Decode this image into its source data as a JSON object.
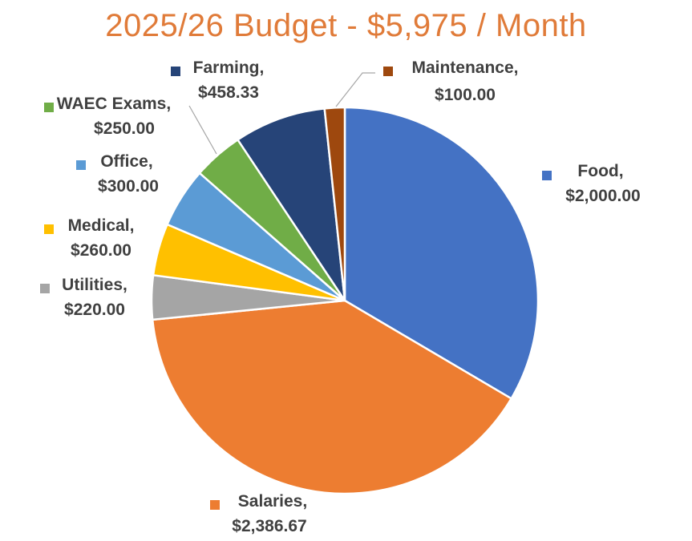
{
  "chart_data": {
    "type": "pie",
    "title": "2025/26 Budget - $5,975 / Month",
    "slices": [
      {
        "name": "Food",
        "value": 2000.0,
        "label_value": "$2,000.00",
        "color": "#4472C4"
      },
      {
        "name": "Salaries",
        "value": 2386.67,
        "label_value": "$2,386.67",
        "color": "#ED7D31"
      },
      {
        "name": "Utilities",
        "value": 220.0,
        "label_value": "$220.00",
        "color": "#A5A5A5"
      },
      {
        "name": "Medical",
        "value": 260.0,
        "label_value": "$260.00",
        "color": "#FFC000"
      },
      {
        "name": "Office",
        "value": 300.0,
        "label_value": "$300.00",
        "color": "#5B9BD5"
      },
      {
        "name": "WAEC Exams",
        "value": 250.0,
        "label_value": "$250.00",
        "color": "#70AD47"
      },
      {
        "name": "Farming",
        "value": 458.33,
        "label_value": "$458.33",
        "color": "#264478"
      },
      {
        "name": "Maintenance",
        "value": 100.0,
        "label_value": "$100.00",
        "color": "#9E480E"
      }
    ],
    "start_angle_deg": 0,
    "direction": "clockwise",
    "legend": "none",
    "data_labels": "category name and value"
  }
}
